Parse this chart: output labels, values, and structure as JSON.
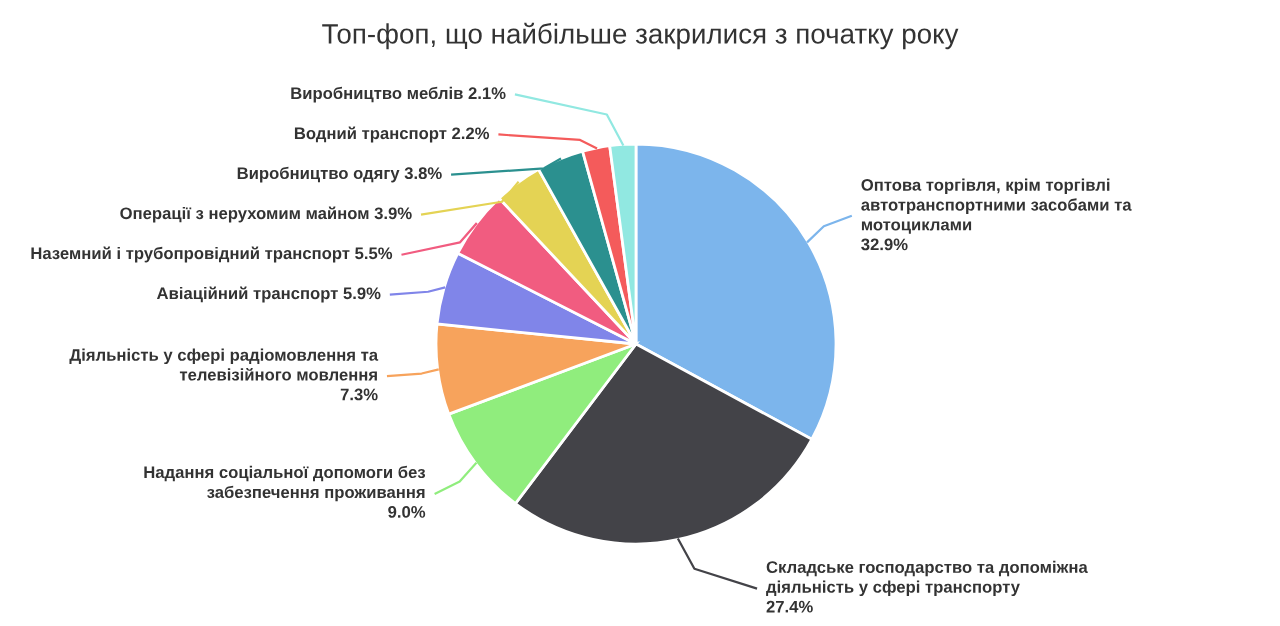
{
  "chart_data": {
    "type": "pie",
    "title": "Топ-фоп, що найбільше закрилися з початку року",
    "categories": [
      "Оптова торгівля, крім торгівлі автотранспортними засобами та мотоциклами",
      "Складське господарство та допоміжна діяльність у сфері транспорту",
      "Надання соціальної допомоги без забезпечення проживання",
      "Діяльність у сфері радіомовлення та телевізійного мовлення",
      "Авіаційний транспорт",
      "Наземний і трубопровідний транспорт",
      "Операції з нерухомим майном",
      "Виробництво одягу",
      "Водний транспорт",
      "Виробництво меблів"
    ],
    "values": [
      32.9,
      27.4,
      9.0,
      7.3,
      5.9,
      5.5,
      3.9,
      3.8,
      2.2,
      2.1
    ],
    "value_labels": [
      "32.9%",
      "27.4%",
      "9.0%",
      "7.3%",
      "5.9%",
      "5.5%",
      "3.9%",
      "3.8%",
      "2.2%",
      "2.1%"
    ],
    "colors": [
      "#7cb5ec",
      "#434348",
      "#90ed7d",
      "#f7a35c",
      "#8085e9",
      "#f15c80",
      "#e4d354",
      "#2b908f",
      "#f45b5b",
      "#91e8e1"
    ]
  }
}
